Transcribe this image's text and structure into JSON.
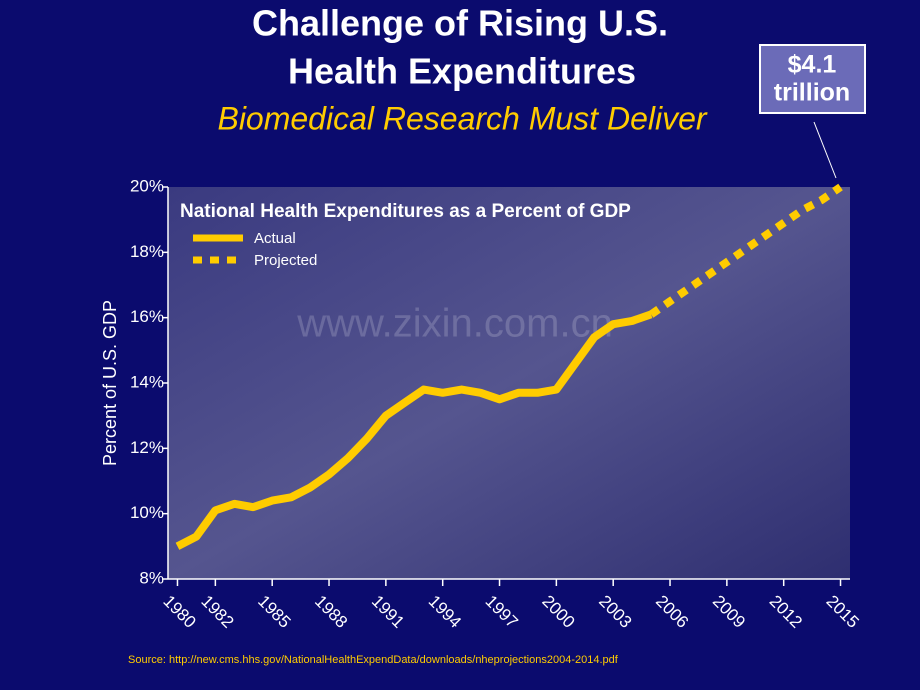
{
  "chart_data": {
    "type": "line",
    "title_lines": [
      "Challenge of Rising U.S.",
      "Health Expenditures"
    ],
    "subtitle": "Biomedical Research Must Deliver",
    "callout_lines": [
      "$4.1",
      "trillion"
    ],
    "chart_title": "National Health Expenditures as a Percent of GDP",
    "ylabel": "Percent of U.S. GDP",
    "watermark": "www.zixin.com.cn",
    "source": "Source: http://new.cms.hhs.gov/NationalHealthExpendData/downloads/nheprojections2004-2014.pdf",
    "x": [
      1980,
      1981,
      1982,
      1983,
      1984,
      1985,
      1986,
      1987,
      1988,
      1989,
      1990,
      1991,
      1992,
      1993,
      1994,
      1995,
      1996,
      1997,
      1998,
      1999,
      2000,
      2001,
      2002,
      2003,
      2004,
      2005,
      2006,
      2007,
      2008,
      2009,
      2010,
      2011,
      2012,
      2013,
      2014,
      2015
    ],
    "series": [
      {
        "name": "Actual",
        "color": "#ffcc00",
        "style": "solid",
        "values": [
          9.0,
          9.3,
          10.1,
          10.3,
          10.2,
          10.4,
          10.5,
          10.8,
          11.2,
          11.7,
          12.3,
          13.0,
          13.4,
          13.8,
          13.7,
          13.8,
          13.7,
          13.5,
          13.7,
          13.7,
          13.8,
          14.6,
          15.4,
          15.8,
          15.9,
          16.1,
          null,
          null,
          null,
          null,
          null,
          null,
          null,
          null,
          null,
          null
        ]
      },
      {
        "name": "Projected",
        "color": "#ffcc00",
        "style": "dotted",
        "values": [
          null,
          null,
          null,
          null,
          null,
          null,
          null,
          null,
          null,
          null,
          null,
          null,
          null,
          null,
          null,
          null,
          null,
          null,
          null,
          null,
          null,
          null,
          null,
          null,
          null,
          16.1,
          16.5,
          16.9,
          17.3,
          17.7,
          18.1,
          18.5,
          18.9,
          19.3,
          19.6,
          20.0
        ]
      }
    ],
    "xlim": [
      1979.5,
      2015.5
    ],
    "xticks": [
      1980,
      1982,
      1985,
      1988,
      1991,
      1994,
      1997,
      2000,
      2003,
      2006,
      2009,
      2012,
      2015
    ],
    "ylim": [
      8,
      20
    ],
    "yticks": [
      {
        "value": 8,
        "label": "8%"
      },
      {
        "value": 10,
        "label": "10%"
      },
      {
        "value": 12,
        "label": "12%"
      },
      {
        "value": 14,
        "label": "14%"
      },
      {
        "value": 16,
        "label": "16%"
      },
      {
        "value": 18,
        "label": "18%"
      },
      {
        "value": 20,
        "label": "20%"
      }
    ]
  }
}
